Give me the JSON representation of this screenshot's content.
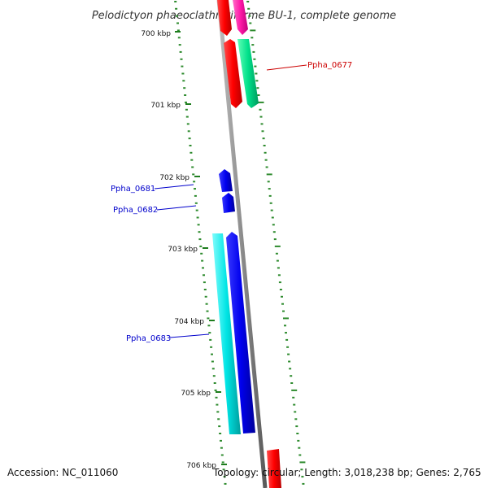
{
  "title": "Pelodictyon phaeoclathratiforme BU-1, complete genome",
  "ticks": [
    "700 kbp",
    "701 kbp",
    "702 kbp",
    "703 kbp",
    "704 kbp",
    "705 kbp",
    "706 kbp"
  ],
  "gene_labels": {
    "ppha_0677": "Ppha_0677",
    "ppha_0681": "Ppha_0681",
    "ppha_0682": "Ppha_0682",
    "ppha_0683": "Ppha_0683"
  },
  "footer": {
    "accession": "Accession: NC_011060",
    "summary": "Topology: circular; Length: 3,018,238 bp; Genes: 2,765"
  },
  "colors": {
    "backbone": "#8c8c8c",
    "tick": "#2e8b2e",
    "gene_red": "#ff0000",
    "gene_green": "#00e08a",
    "gene_magenta": "#ff1aa8",
    "gene_blue": "#0000ee",
    "gene_cyan": "#00e5e5",
    "label_red": "#cc0000",
    "label_blue": "#0000cc"
  }
}
